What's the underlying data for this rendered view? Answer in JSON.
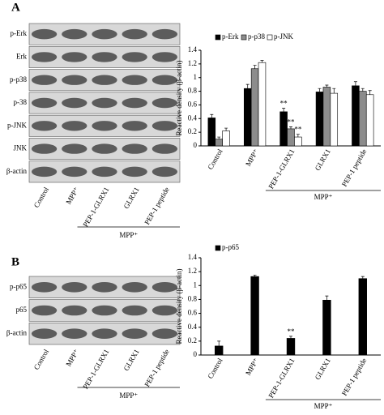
{
  "panels": [
    {
      "letter": "A",
      "rows": [
        "p-Erk",
        "Erk",
        "p-p38",
        "p-38",
        "p-JNK",
        "JNK",
        "β-actin"
      ],
      "lanes": [
        "Control",
        "MPP⁺",
        "PEP-1-GLRX1",
        "GLRX1",
        "PEP-1 peptide"
      ],
      "group_label": "MPP⁺"
    },
    {
      "letter": "B",
      "rows": [
        "p-p65",
        "p65",
        "β-actin"
      ],
      "lanes": [
        "Control",
        "MPP⁺",
        "PEP-1-GLRX1",
        "GLRX1",
        "PEP-1 peptide"
      ],
      "group_label": "MPP⁺"
    }
  ],
  "chart_data": [
    {
      "type": "bar",
      "y_label": "Reactive density (β-actin)",
      "categories": [
        "Control",
        "MPP⁺",
        "PEP-1-GLRX1",
        "GLRX1",
        "PEP-1 peptide"
      ],
      "series": [
        {
          "name": "p-Erk",
          "color": "#000000",
          "values": [
            0.41,
            0.84,
            0.5,
            0.79,
            0.88
          ],
          "errors": [
            0.05,
            0.06,
            0.05,
            0.05,
            0.06
          ]
        },
        {
          "name": "p-p38",
          "color": "#8c8c8c",
          "values": [
            0.1,
            1.13,
            0.25,
            0.86,
            0.8
          ],
          "errors": [
            0.03,
            0.05,
            0.03,
            0.03,
            0.04
          ]
        },
        {
          "name": "p-JNK",
          "color": "#ffffff",
          "values": [
            0.22,
            1.22,
            0.13,
            0.77,
            0.75
          ],
          "errors": [
            0.04,
            0.03,
            0.04,
            0.07,
            0.06
          ]
        }
      ],
      "annotations": [
        {
          "text": "**",
          "category": 2,
          "series": 0
        },
        {
          "text": "**",
          "category": 2,
          "series": 1
        },
        {
          "text": "**",
          "category": 2,
          "series": 2
        }
      ],
      "group_label": "MPP⁺",
      "ylim": [
        0,
        1.4
      ],
      "yticks": [
        0,
        0.2,
        0.4,
        0.6,
        0.8,
        1,
        1.2,
        1.4
      ],
      "legend": "top"
    },
    {
      "type": "bar",
      "y_label": "Reactive density (β-actin)",
      "categories": [
        "Control",
        "MPP⁺",
        "PEP-1-GLRX1",
        "GLRX1",
        "PEP-1 peptide"
      ],
      "series": [
        {
          "name": "p-p65",
          "color": "#000000",
          "values": [
            0.13,
            1.13,
            0.24,
            0.79,
            1.1
          ],
          "errors": [
            0.07,
            0.02,
            0.03,
            0.06,
            0.03
          ]
        }
      ],
      "annotations": [
        {
          "text": "**",
          "category": 2,
          "series": 0
        }
      ],
      "group_label": "MPP⁺",
      "ylim": [
        0,
        1.4
      ],
      "yticks": [
        0,
        0.2,
        0.4,
        0.6,
        0.8,
        1,
        1.2,
        1.4
      ],
      "legend": "top"
    }
  ]
}
